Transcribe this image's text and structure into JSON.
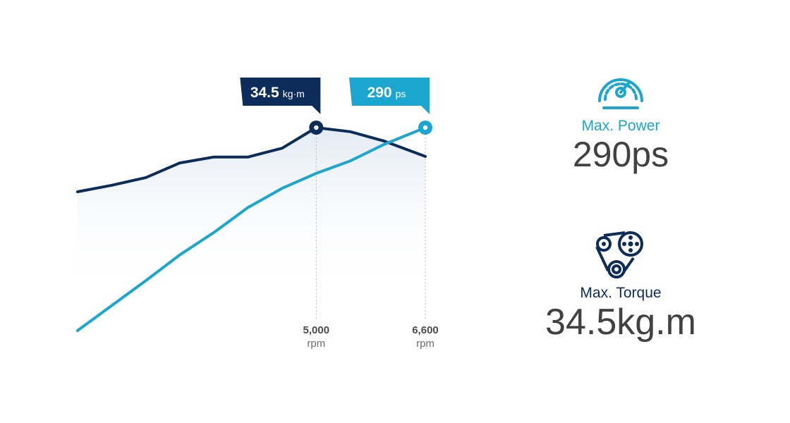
{
  "stats": {
    "power": {
      "icon": "speedometer-icon",
      "label": "Max. Power",
      "value": "290ps",
      "color": "#1aa6cf"
    },
    "torque": {
      "icon": "torque-pulley-icon",
      "label": "Max. Torque",
      "value": "34.5kg.m",
      "color": "#0c2c5a"
    }
  },
  "chart_data": {
    "type": "line",
    "x": [
      1500,
      2000,
      2500,
      3000,
      3500,
      4000,
      4500,
      5000,
      5500,
      6000,
      6600
    ],
    "xlim": [
      1500,
      6600
    ],
    "x_ticks": [
      {
        "value": 5000,
        "label": "5,000",
        "unit": "rpm"
      },
      {
        "value": 6600,
        "label": "6,600",
        "unit": "rpm"
      }
    ],
    "grid": false,
    "legend": "none",
    "series": [
      {
        "key": "torque",
        "color": "#0c2c5a",
        "values": [
          23.6,
          24.7,
          26.0,
          28.5,
          29.5,
          29.5,
          31.0,
          34.5,
          33.8,
          32.2,
          29.6
        ],
        "peak": {
          "x": 5000,
          "value_label": "34.5",
          "unit_label": "kg·m"
        }
      },
      {
        "key": "power",
        "color": "#1aa6cf",
        "values": [
          46,
          76,
          106,
          137,
          164,
          194,
          217,
          235,
          250,
          270,
          290
        ],
        "peak": {
          "x": 6600,
          "value_label": "290",
          "unit_label": "ps"
        }
      }
    ]
  }
}
